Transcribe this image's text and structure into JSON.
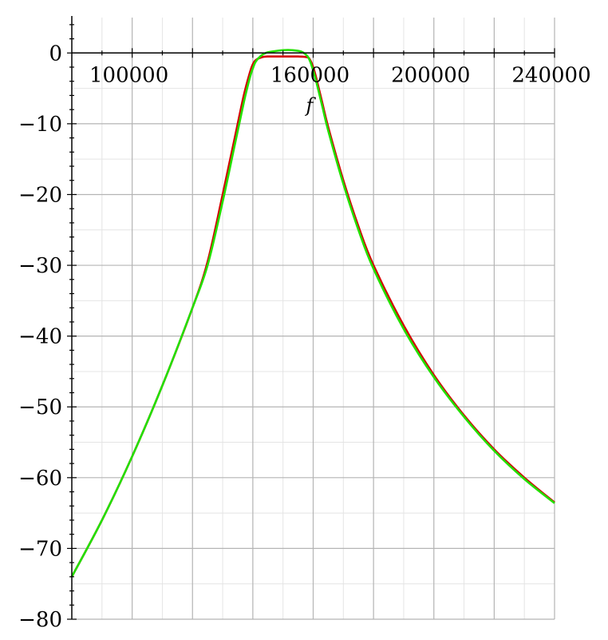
{
  "chart_data": {
    "type": "line",
    "title": "",
    "xlabel": "f",
    "ylabel": "",
    "xlim": [
      80000,
      240000
    ],
    "ylim": [
      -80,
      5
    ],
    "grid": true,
    "x_ticks": [
      100000,
      160000,
      200000,
      240000
    ],
    "x_tick_labels": [
      "100000",
      "160000",
      "200000",
      "240000"
    ],
    "y_ticks": [
      0,
      -10,
      -20,
      -30,
      -40,
      -50,
      -60,
      -70,
      -80
    ],
    "y_tick_labels": [
      "0",
      "−10",
      "−20",
      "−30",
      "−40",
      "−50",
      "−60",
      "−70",
      "−80"
    ],
    "colors": {
      "grid_major": "#b4b4b4",
      "grid_minor": "#e4e4e4",
      "axis": "#000000",
      "series_red": "#d40000",
      "series_green": "#22e000"
    },
    "series": [
      {
        "name": "red",
        "color": "#d40000",
        "x": [
          80000,
          90000,
          100000,
          110000,
          120000,
          125000,
          130000,
          134000,
          137000,
          139000,
          140000,
          141000,
          143000,
          145000,
          150000,
          155000,
          158000,
          159000,
          160000,
          161000,
          163000,
          165000,
          170000,
          175000,
          180000,
          190000,
          200000,
          210000,
          220000,
          230000,
          240000
        ],
        "y": [
          -74,
          -66,
          -57,
          -47,
          -36,
          -29.5,
          -20,
          -12,
          -6,
          -2.8,
          -1.6,
          -1,
          -0.6,
          -0.5,
          -0.5,
          -0.5,
          -0.6,
          -1,
          -2,
          -3.5,
          -7,
          -10.5,
          -18,
          -24.5,
          -30,
          -38.5,
          -45.5,
          -51.2,
          -56,
          -60,
          -63.5
        ]
      },
      {
        "name": "green",
        "color": "#22e000",
        "x": [
          80000,
          90000,
          100000,
          110000,
          120000,
          125000,
          130000,
          134000,
          137000,
          139000,
          140000,
          141000,
          143000,
          145000,
          148000,
          150000,
          153000,
          156000,
          158000,
          159000,
          160000,
          161000,
          163000,
          165000,
          170000,
          175000,
          180000,
          190000,
          200000,
          210000,
          220000,
          230000,
          240000
        ],
        "y": [
          -74,
          -66,
          -57,
          -47,
          -36,
          -30,
          -21,
          -13,
          -7,
          -3.5,
          -2.2,
          -1.2,
          -0.3,
          0.1,
          0.3,
          0.4,
          0.4,
          0.2,
          -0.4,
          -1.2,
          -2.5,
          -4,
          -7.5,
          -11,
          -18.5,
          -25,
          -30.5,
          -39,
          -45.8,
          -51.4,
          -56.2,
          -60.2,
          -63.6
        ]
      }
    ]
  }
}
